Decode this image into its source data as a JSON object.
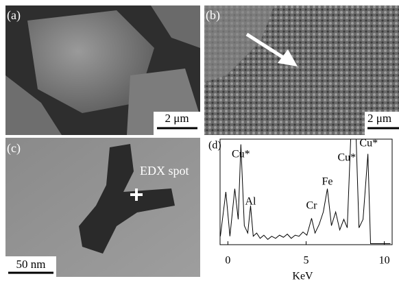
{
  "panels": [
    {
      "label": "(a)",
      "scale_bar": "2 μm"
    },
    {
      "label": "(b)",
      "scale_bar": "2 μm"
    },
    {
      "label": "(c)",
      "scale_bar": "50 nm",
      "annotation": "EDX spot"
    }
  ],
  "chart_data": {
    "type": "line",
    "label": "(d)",
    "x_label": "KeV",
    "xlim": [
      -0.5,
      10.5
    ],
    "xticks": [
      0,
      5,
      10
    ],
    "ylim": [
      0,
      100
    ],
    "x": [
      -0.48,
      -0.13,
      0.13,
      0.44,
      0.66,
      0.83,
      1.05,
      1.27,
      1.45,
      1.62,
      1.84,
      2.06,
      2.3,
      2.55,
      2.8,
      3.05,
      3.3,
      3.55,
      3.8,
      4.05,
      4.3,
      4.55,
      4.8,
      5.05,
      5.35,
      5.57,
      5.83,
      6.1,
      6.36,
      6.62,
      6.89,
      7.15,
      7.41,
      7.63,
      7.85,
      8.2,
      8.38,
      8.64,
      8.95,
      9.12,
      10.39
    ],
    "series": [
      {
        "color": "#000000",
        "values": [
          8,
          50,
          8,
          53,
          24,
          95,
          18,
          11,
          37,
          8,
          11,
          6,
          9,
          5,
          8,
          6,
          9,
          7,
          10,
          6,
          9,
          8,
          12,
          9,
          25,
          11,
          19,
          31,
          53,
          18,
          31,
          14,
          24,
          16,
          100,
          100,
          16,
          24,
          86,
          1,
          1
        ]
      }
    ],
    "annotations": [
      {
        "text": "Cu*",
        "x": 0.83
      },
      {
        "text": "Al",
        "x": 1.45
      },
      {
        "text": "Cr",
        "x": 5.35
      },
      {
        "text": "Fe",
        "x": 6.36
      },
      {
        "text": "Cu*",
        "x": 7.6
      },
      {
        "text": "Cu*",
        "x": 9.0
      }
    ]
  }
}
